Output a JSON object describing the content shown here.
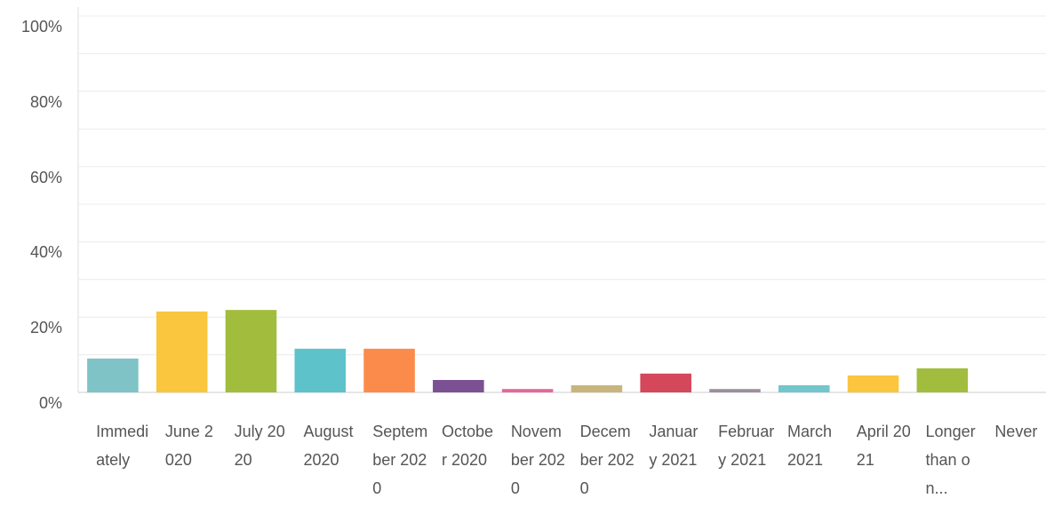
{
  "chart_data": {
    "type": "bar",
    "categories": [
      "Immediately",
      "June 2020",
      "July 2020",
      "August 2020",
      "September 2020",
      "October 2020",
      "November 2020",
      "December 2020",
      "January 2021",
      "February 2021",
      "March 2021",
      "April 2021",
      "Longer than on...",
      "Never"
    ],
    "values": [
      9.0,
      21.5,
      21.9,
      11.6,
      11.6,
      3.3,
      0.9,
      1.9,
      5.0,
      0.9,
      1.9,
      4.5,
      6.4,
      0
    ],
    "colors": [
      "#7fc3c6",
      "#f9c63d",
      "#a2bd3d",
      "#5ec2cb",
      "#fb8b4b",
      "#7b5193",
      "#e5689a",
      "#c8b57b",
      "#d5475a",
      "#9d8f9c",
      "#74c5cc",
      "#fbc63d",
      "#a2bd3d",
      "#8fc9cc"
    ],
    "ylim": [
      0,
      100
    ],
    "yticks": [
      {
        "value": 0,
        "label": "0%"
      },
      {
        "value": 20,
        "label": "20%"
      },
      {
        "value": 40,
        "label": "40%"
      },
      {
        "value": 60,
        "label": "60%"
      },
      {
        "value": 80,
        "label": "80%"
      },
      {
        "value": 100,
        "label": "100%"
      }
    ],
    "minor_yticks": [
      10,
      30,
      50,
      70,
      90
    ],
    "grid": true
  }
}
